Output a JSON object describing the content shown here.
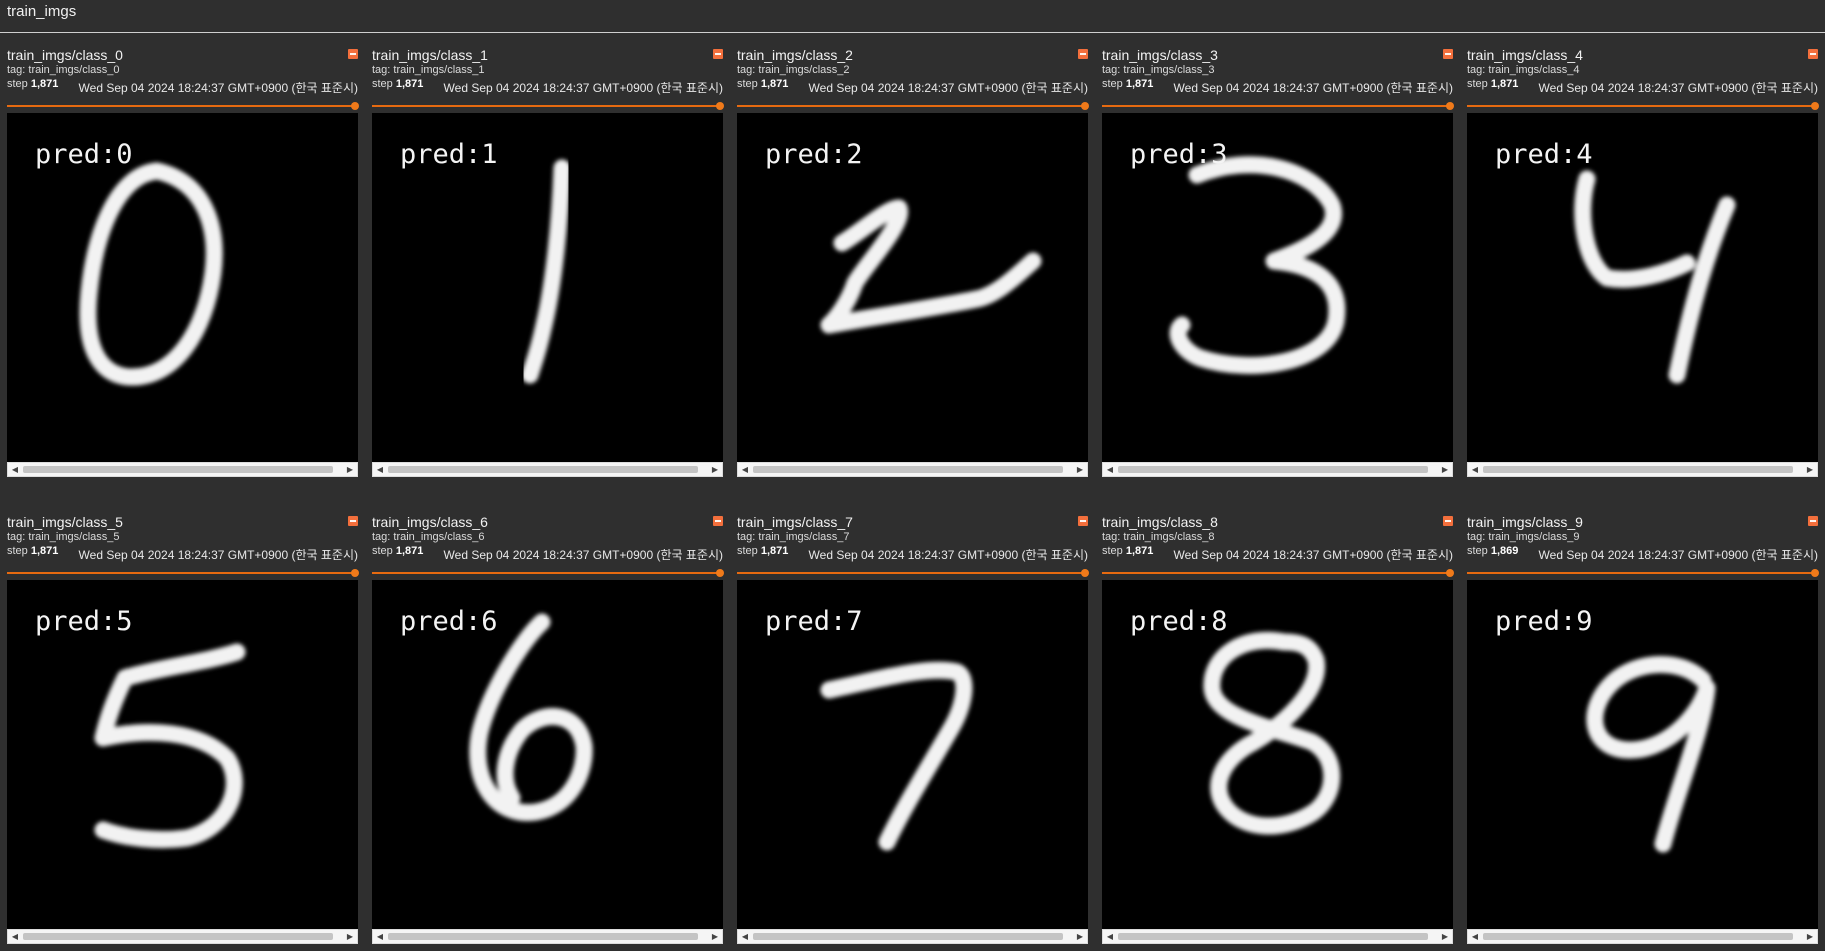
{
  "group": {
    "title": "train_imgs"
  },
  "cards": [
    {
      "title": "train_imgs/class_0",
      "tag": "tag: train_imgs/class_0",
      "step_label": "step",
      "step": "1,871",
      "date": "Wed Sep 04 2024 18:24:37 GMT+0900 (한국 표준시)",
      "pred": "pred:0",
      "digit": "0"
    },
    {
      "title": "train_imgs/class_1",
      "tag": "tag: train_imgs/class_1",
      "step_label": "step",
      "step": "1,871",
      "date": "Wed Sep 04 2024 18:24:37 GMT+0900 (한국 표준시)",
      "pred": "pred:1",
      "digit": "1"
    },
    {
      "title": "train_imgs/class_2",
      "tag": "tag: train_imgs/class_2",
      "step_label": "step",
      "step": "1,871",
      "date": "Wed Sep 04 2024 18:24:37 GMT+0900 (한국 표준시)",
      "pred": "pred:2",
      "digit": "2"
    },
    {
      "title": "train_imgs/class_3",
      "tag": "tag: train_imgs/class_3",
      "step_label": "step",
      "step": "1,871",
      "date": "Wed Sep 04 2024 18:24:37 GMT+0900 (한국 표준시)",
      "pred": "pred:3",
      "digit": "3"
    },
    {
      "title": "train_imgs/class_4",
      "tag": "tag: train_imgs/class_4",
      "step_label": "step",
      "step": "1,871",
      "date": "Wed Sep 04 2024 18:24:37 GMT+0900 (한국 표준시)",
      "pred": "pred:4",
      "digit": "4"
    },
    {
      "title": "train_imgs/class_5",
      "tag": "tag: train_imgs/class_5",
      "step_label": "step",
      "step": "1,871",
      "date": "Wed Sep 04 2024 18:24:37 GMT+0900 (한국 표준시)",
      "pred": "pred:5",
      "digit": "5"
    },
    {
      "title": "train_imgs/class_6",
      "tag": "tag: train_imgs/class_6",
      "step_label": "step",
      "step": "1,871",
      "date": "Wed Sep 04 2024 18:24:37 GMT+0900 (한국 표준시)",
      "pred": "pred:6",
      "digit": "6"
    },
    {
      "title": "train_imgs/class_7",
      "tag": "tag: train_imgs/class_7",
      "step_label": "step",
      "step": "1,871",
      "date": "Wed Sep 04 2024 18:24:37 GMT+0900 (한국 표준시)",
      "pred": "pred:7",
      "digit": "7"
    },
    {
      "title": "train_imgs/class_8",
      "tag": "tag: train_imgs/class_8",
      "step_label": "step",
      "step": "1,871",
      "date": "Wed Sep 04 2024 18:24:37 GMT+0900 (한국 표준시)",
      "pred": "pred:8",
      "digit": "8"
    },
    {
      "title": "train_imgs/class_9",
      "tag": "tag: train_imgs/class_9",
      "step_label": "step",
      "step": "1,869",
      "date": "Wed Sep 04 2024 18:24:37 GMT+0900 (한국 표준시)",
      "pred": "pred:9",
      "digit": "9"
    }
  ],
  "colors": {
    "background": "#2f2f2f",
    "accent": "#f07a1a",
    "expand_button": "#f36f3c",
    "image_bg": "#000000"
  },
  "icons": {
    "expand": "expand-icon",
    "scroll_left": "triangle-left-icon",
    "scroll_right": "triangle-right-icon"
  },
  "step_slider_position": 1.0
}
